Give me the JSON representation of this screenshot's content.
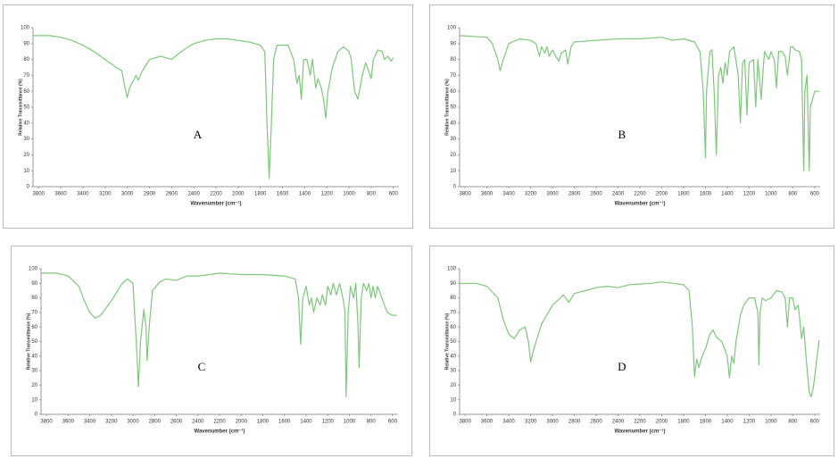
{
  "chart_data": [
    {
      "type": "line",
      "annotation": "A",
      "xlabel": "Wavenumber (cm⁻¹)",
      "ylabel": "Relative Transmittance (%)",
      "color": "#7dc87a",
      "grid": false,
      "xlim": [
        3850,
        550
      ],
      "xticks": [
        3800,
        3600,
        3400,
        3200,
        3000,
        2800,
        2600,
        2400,
        2200,
        2000,
        1800,
        1600,
        1400,
        1200,
        1000,
        800,
        600
      ],
      "ylim": [
        0,
        100
      ],
      "yticks": [
        0,
        10,
        20,
        30,
        40,
        50,
        60,
        70,
        80,
        90,
        100
      ],
      "x": [
        3850,
        3700,
        3600,
        3500,
        3400,
        3300,
        3200,
        3100,
        3050,
        3020,
        3000,
        2980,
        2950,
        2920,
        2900,
        2870,
        2800,
        2700,
        2600,
        2550,
        2450,
        2400,
        2300,
        2200,
        2100,
        2000,
        1900,
        1800,
        1760,
        1740,
        1720,
        1700,
        1680,
        1650,
        1600,
        1550,
        1500,
        1470,
        1450,
        1430,
        1410,
        1380,
        1350,
        1330,
        1300,
        1280,
        1250,
        1230,
        1210,
        1190,
        1150,
        1100,
        1050,
        1000,
        980,
        950,
        920,
        880,
        850,
        820,
        800,
        780,
        740,
        700,
        680,
        650,
        620,
        600
      ],
      "values": [
        95,
        95,
        94,
        92,
        89,
        85,
        80,
        75,
        73,
        62,
        56,
        62,
        66,
        70,
        67,
        72,
        80,
        82,
        80,
        83,
        88,
        90,
        92,
        93,
        93,
        92,
        91,
        89,
        85,
        40,
        5,
        40,
        80,
        89,
        89,
        89,
        80,
        65,
        70,
        55,
        80,
        80,
        70,
        80,
        62,
        68,
        62,
        55,
        43,
        60,
        75,
        85,
        88,
        85,
        80,
        60,
        55,
        70,
        78,
        72,
        68,
        80,
        86,
        85,
        80,
        82,
        79,
        81
      ]
    },
    {
      "type": "line",
      "annotation": "B",
      "xlabel": "Wavenumber (cm⁻¹)",
      "ylabel": "Relative Transmittance (%)",
      "color": "#7dc87a",
      "grid": false,
      "xlim": [
        3850,
        550
      ],
      "xticks": [
        3800,
        3600,
        3400,
        3200,
        3000,
        2800,
        2600,
        2400,
        2200,
        2000,
        1800,
        1600,
        1400,
        1200,
        1000,
        800,
        600
      ],
      "ylim": [
        0,
        100
      ],
      "yticks": [
        0,
        10,
        20,
        30,
        40,
        50,
        60,
        70,
        80,
        90,
        100
      ],
      "x": [
        3850,
        3600,
        3550,
        3500,
        3480,
        3450,
        3400,
        3300,
        3200,
        3150,
        3120,
        3100,
        3070,
        3050,
        3030,
        3000,
        2970,
        2940,
        2920,
        2880,
        2860,
        2830,
        2800,
        2600,
        2400,
        2200,
        2000,
        1900,
        1800,
        1700,
        1650,
        1620,
        1600,
        1590,
        1560,
        1540,
        1520,
        1500,
        1480,
        1460,
        1440,
        1420,
        1400,
        1380,
        1340,
        1300,
        1280,
        1260,
        1240,
        1220,
        1200,
        1160,
        1140,
        1120,
        1090,
        1060,
        1020,
        1000,
        970,
        950,
        930,
        900,
        870,
        850,
        820,
        800,
        780,
        740,
        720,
        700,
        690,
        670,
        650,
        640,
        600,
        560
      ],
      "values": [
        95,
        94,
        90,
        80,
        73,
        80,
        90,
        93,
        92,
        90,
        82,
        88,
        84,
        88,
        82,
        86,
        82,
        79,
        84,
        86,
        77,
        88,
        91,
        92,
        93,
        93,
        94,
        92,
        93,
        91,
        85,
        60,
        18,
        60,
        85,
        86,
        60,
        20,
        70,
        75,
        65,
        78,
        70,
        85,
        88,
        70,
        40,
        78,
        80,
        45,
        78,
        80,
        50,
        80,
        55,
        85,
        80,
        85,
        80,
        62,
        85,
        85,
        82,
        70,
        88,
        88,
        86,
        85,
        80,
        10,
        60,
        70,
        10,
        50,
        60,
        60
      ]
    },
    {
      "type": "line",
      "annotation": "C",
      "xlabel": "Wavenumber (cm⁻¹)",
      "ylabel": "Relative Transmittance (%)",
      "color": "#7dc87a",
      "grid": false,
      "xlim": [
        3850,
        550
      ],
      "xticks": [
        3800,
        3600,
        3400,
        3200,
        3000,
        2800,
        2600,
        2400,
        2200,
        2000,
        1800,
        1600,
        1400,
        1200,
        1000,
        800,
        600
      ],
      "ylim": [
        0,
        100
      ],
      "yticks": [
        0,
        10,
        20,
        30,
        40,
        50,
        60,
        70,
        80,
        90,
        100
      ],
      "x": [
        3850,
        3700,
        3600,
        3500,
        3450,
        3400,
        3350,
        3300,
        3200,
        3100,
        3050,
        3000,
        2970,
        2950,
        2930,
        2900,
        2880,
        2870,
        2850,
        2820,
        2750,
        2700,
        2600,
        2500,
        2400,
        2200,
        2000,
        1800,
        1600,
        1500,
        1470,
        1450,
        1430,
        1400,
        1370,
        1350,
        1330,
        1300,
        1270,
        1250,
        1220,
        1200,
        1170,
        1150,
        1120,
        1090,
        1060,
        1040,
        1030,
        1010,
        990,
        960,
        940,
        920,
        910,
        890,
        870,
        840,
        820,
        800,
        780,
        760,
        740,
        700,
        650,
        600,
        560
      ],
      "values": [
        97,
        97,
        95,
        88,
        78,
        70,
        66,
        68,
        78,
        90,
        93,
        90,
        50,
        19,
        50,
        72,
        60,
        37,
        60,
        85,
        91,
        93,
        92,
        95,
        95,
        97,
        96,
        96,
        95,
        93,
        80,
        48,
        80,
        88,
        75,
        80,
        70,
        80,
        75,
        82,
        75,
        88,
        82,
        90,
        82,
        90,
        80,
        70,
        12,
        70,
        88,
        80,
        90,
        60,
        32,
        80,
        90,
        85,
        90,
        80,
        88,
        80,
        88,
        80,
        70,
        68,
        68
      ]
    },
    {
      "type": "line",
      "annotation": "D",
      "xlabel": "Wavenumber (cm⁻¹)",
      "ylabel": "Relative Transmittance (%)",
      "color": "#7dc87a",
      "grid": false,
      "xlim": [
        3850,
        550
      ],
      "xticks": [
        3800,
        3600,
        3400,
        3200,
        3000,
        2800,
        2600,
        2400,
        2200,
        2000,
        1800,
        1600,
        1400,
        1200,
        1000,
        800,
        600
      ],
      "ylim": [
        0,
        100
      ],
      "yticks": [
        0,
        10,
        20,
        30,
        40,
        50,
        60,
        70,
        80,
        90,
        100
      ],
      "x": [
        3850,
        3700,
        3600,
        3500,
        3450,
        3400,
        3350,
        3300,
        3250,
        3220,
        3200,
        3170,
        3100,
        3000,
        2900,
        2850,
        2800,
        2700,
        2600,
        2500,
        2400,
        2300,
        2100,
        2000,
        1900,
        1800,
        1750,
        1720,
        1700,
        1680,
        1660,
        1640,
        1600,
        1560,
        1530,
        1500,
        1450,
        1400,
        1380,
        1360,
        1340,
        1320,
        1280,
        1250,
        1200,
        1150,
        1120,
        1110,
        1100,
        1080,
        1050,
        1000,
        950,
        900,
        870,
        850,
        830,
        800,
        780,
        750,
        720,
        700,
        680,
        650,
        630,
        610,
        560
      ],
      "values": [
        90,
        90,
        88,
        80,
        65,
        55,
        52,
        58,
        60,
        50,
        36,
        45,
        62,
        75,
        82,
        77,
        83,
        85,
        87,
        88,
        87,
        89,
        90,
        91,
        90,
        89,
        85,
        60,
        26,
        38,
        32,
        38,
        45,
        55,
        58,
        53,
        50,
        40,
        25,
        40,
        35,
        50,
        68,
        75,
        80,
        80,
        70,
        34,
        70,
        80,
        78,
        80,
        85,
        84,
        80,
        60,
        80,
        80,
        72,
        75,
        52,
        60,
        40,
        15,
        12,
        20,
        51
      ]
    }
  ]
}
